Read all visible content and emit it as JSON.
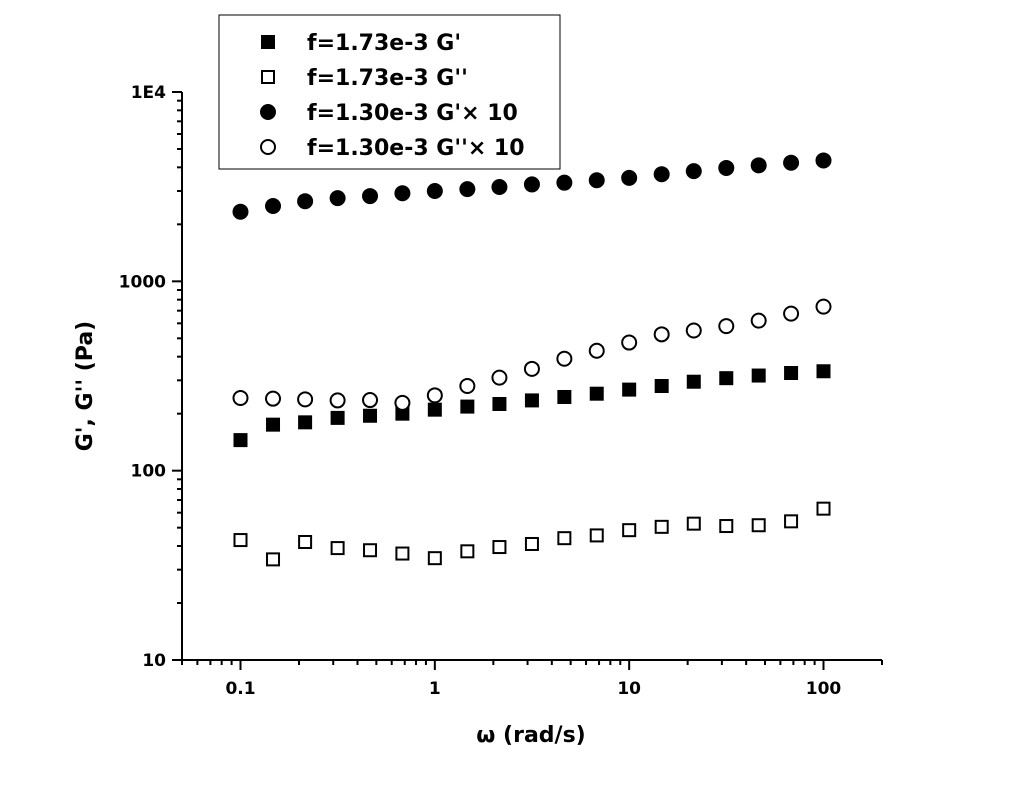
{
  "chart_data": {
    "type": "scatter",
    "xscale": "log",
    "yscale": "log",
    "xlim": [
      0.05,
      200
    ],
    "ylim": [
      10,
      10000
    ],
    "xlabel": "ω (rad/s)",
    "ylabel": "G', G'' (Pa)",
    "xticks": [
      0.1,
      1,
      10,
      100
    ],
    "xtick_labels": [
      "0.1",
      "1",
      "10",
      "100"
    ],
    "yticks": [
      10,
      100,
      1000,
      10000
    ],
    "ytick_labels": [
      "10",
      "100",
      "1000",
      "1E4"
    ],
    "legend_position": "top-left",
    "x": [
      0.1,
      0.147,
      0.215,
      0.316,
      0.464,
      0.681,
      1,
      1.47,
      2.15,
      3.16,
      4.64,
      6.81,
      10,
      14.7,
      21.5,
      31.6,
      46.4,
      68.1,
      100
    ],
    "series": [
      {
        "name": "f=1.73e-3 G'",
        "marker": "square-filled",
        "values": [
          145,
          175,
          180,
          190,
          195,
          200,
          210,
          218,
          225,
          235,
          245,
          255,
          268,
          280,
          295,
          308,
          318,
          328,
          335
        ]
      },
      {
        "name": "f=1.73e-3 G''",
        "marker": "square-open",
        "values": [
          43,
          34,
          42,
          39,
          38,
          36.5,
          34.5,
          37.5,
          39.5,
          41,
          44,
          45.5,
          48.5,
          50.5,
          52.5,
          51,
          51.5,
          54,
          63
        ]
      },
      {
        "name": "f=1.30e-3 G'× 10",
        "marker": "circle-filled",
        "values": [
          2330,
          2500,
          2650,
          2750,
          2820,
          2920,
          3000,
          3070,
          3150,
          3250,
          3320,
          3420,
          3520,
          3680,
          3820,
          3970,
          4100,
          4230,
          4350
        ]
      },
      {
        "name": "f=1.30e-3 G''× 10",
        "marker": "circle-open",
        "values": [
          242,
          240,
          238,
          235,
          236,
          228,
          250,
          280,
          310,
          345,
          390,
          430,
          475,
          525,
          550,
          580,
          620,
          675,
          735
        ]
      }
    ]
  }
}
